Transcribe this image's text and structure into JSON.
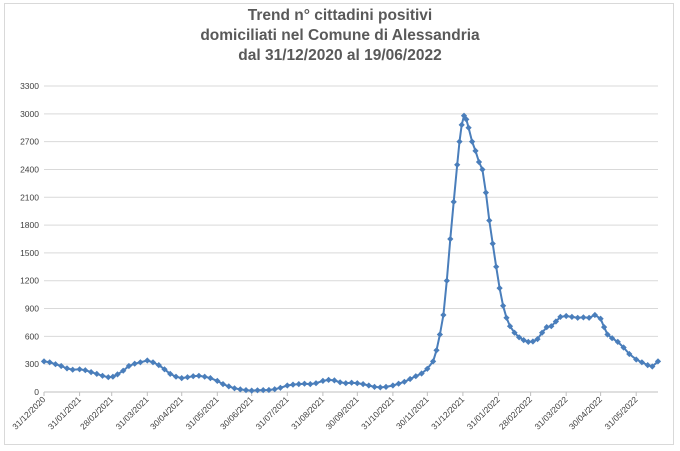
{
  "chart_data": {
    "type": "line",
    "title_lines": [
      "Trend n° cittadini positivi",
      "domiciliati nel Comune di Alessandria",
      "dal 31/12/2020 al 19/06/2022"
    ],
    "xlabel": "",
    "ylabel": "",
    "x_range": [
      "31/12/2020",
      "19/06/2022"
    ],
    "ylim": [
      0,
      3300
    ],
    "yticks": [
      0,
      300,
      600,
      900,
      1200,
      1500,
      1800,
      2100,
      2400,
      2700,
      3000,
      3300
    ],
    "xticks": [
      "31/12/2020",
      "31/01/2021",
      "28/02/2021",
      "31/03/2021",
      "30/04/2021",
      "31/05/2021",
      "30/06/2021",
      "31/07/2021",
      "31/08/2021",
      "30/09/2021",
      "31/10/2021",
      "30/11/2021",
      "31/12/2021",
      "31/01/2022",
      "28/02/2022",
      "31/03/2022",
      "30/04/2022",
      "31/05/2022"
    ],
    "grid": true,
    "legend": "none",
    "line_color": "#4a7ebb",
    "series": [
      {
        "points": [
          [
            "31/12/2020",
            330
          ],
          [
            "05/01/2021",
            320
          ],
          [
            "10/01/2021",
            300
          ],
          [
            "15/01/2021",
            280
          ],
          [
            "20/01/2021",
            255
          ],
          [
            "25/01/2021",
            240
          ],
          [
            "31/01/2021",
            245
          ],
          [
            "05/02/2021",
            235
          ],
          [
            "10/02/2021",
            215
          ],
          [
            "15/02/2021",
            195
          ],
          [
            "20/02/2021",
            175
          ],
          [
            "25/02/2021",
            160
          ],
          [
            "01/03/2021",
            165
          ],
          [
            "05/03/2021",
            190
          ],
          [
            "10/03/2021",
            230
          ],
          [
            "15/03/2021",
            280
          ],
          [
            "20/03/2021",
            305
          ],
          [
            "25/03/2021",
            320
          ],
          [
            "31/03/2021",
            340
          ],
          [
            "05/04/2021",
            320
          ],
          [
            "10/04/2021",
            290
          ],
          [
            "15/04/2021",
            245
          ],
          [
            "20/04/2021",
            195
          ],
          [
            "25/04/2021",
            165
          ],
          [
            "30/04/2021",
            150
          ],
          [
            "05/05/2021",
            160
          ],
          [
            "10/05/2021",
            170
          ],
          [
            "15/05/2021",
            175
          ],
          [
            "20/05/2021",
            165
          ],
          [
            "25/05/2021",
            150
          ],
          [
            "31/05/2021",
            120
          ],
          [
            "05/06/2021",
            85
          ],
          [
            "10/06/2021",
            60
          ],
          [
            "15/06/2021",
            40
          ],
          [
            "20/06/2021",
            28
          ],
          [
            "25/06/2021",
            20
          ],
          [
            "30/06/2021",
            15
          ],
          [
            "05/07/2021",
            18
          ],
          [
            "10/07/2021",
            20
          ],
          [
            "15/07/2021",
            22
          ],
          [
            "20/07/2021",
            30
          ],
          [
            "25/07/2021",
            45
          ],
          [
            "31/07/2021",
            70
          ],
          [
            "05/08/2021",
            80
          ],
          [
            "10/08/2021",
            85
          ],
          [
            "15/08/2021",
            90
          ],
          [
            "20/08/2021",
            85
          ],
          [
            "25/08/2021",
            95
          ],
          [
            "31/08/2021",
            120
          ],
          [
            "05/09/2021",
            130
          ],
          [
            "10/09/2021",
            125
          ],
          [
            "15/09/2021",
            105
          ],
          [
            "20/09/2021",
            95
          ],
          [
            "25/09/2021",
            100
          ],
          [
            "30/09/2021",
            95
          ],
          [
            "05/10/2021",
            85
          ],
          [
            "10/10/2021",
            70
          ],
          [
            "15/10/2021",
            55
          ],
          [
            "20/10/2021",
            50
          ],
          [
            "25/10/2021",
            55
          ],
          [
            "31/10/2021",
            70
          ],
          [
            "05/11/2021",
            90
          ],
          [
            "10/11/2021",
            110
          ],
          [
            "15/11/2021",
            140
          ],
          [
            "20/11/2021",
            170
          ],
          [
            "25/11/2021",
            200
          ],
          [
            "30/11/2021",
            250
          ],
          [
            "05/12/2021",
            330
          ],
          [
            "08/12/2021",
            450
          ],
          [
            "11/12/2021",
            620
          ],
          [
            "14/12/2021",
            830
          ],
          [
            "17/12/2021",
            1200
          ],
          [
            "20/12/2021",
            1650
          ],
          [
            "23/12/2021",
            2050
          ],
          [
            "26/12/2021",
            2450
          ],
          [
            "28/12/2021",
            2700
          ],
          [
            "30/12/2021",
            2880
          ],
          [
            "01/01/2022",
            2980
          ],
          [
            "03/01/2022",
            2940
          ],
          [
            "05/01/2022",
            2850
          ],
          [
            "08/01/2022",
            2700
          ],
          [
            "11/01/2022",
            2600
          ],
          [
            "14/01/2022",
            2480
          ],
          [
            "17/01/2022",
            2400
          ],
          [
            "20/01/2022",
            2150
          ],
          [
            "23/01/2022",
            1850
          ],
          [
            "26/01/2022",
            1600
          ],
          [
            "29/01/2022",
            1350
          ],
          [
            "01/02/2022",
            1120
          ],
          [
            "04/02/2022",
            930
          ],
          [
            "07/02/2022",
            800
          ],
          [
            "10/02/2022",
            710
          ],
          [
            "14/02/2022",
            640
          ],
          [
            "18/02/2022",
            590
          ],
          [
            "22/02/2022",
            560
          ],
          [
            "26/02/2022",
            540
          ],
          [
            "02/03/2022",
            545
          ],
          [
            "06/03/2022",
            570
          ],
          [
            "10/03/2022",
            640
          ],
          [
            "14/03/2022",
            700
          ],
          [
            "18/03/2022",
            710
          ],
          [
            "22/03/2022",
            760
          ],
          [
            "26/03/2022",
            810
          ],
          [
            "31/03/2022",
            820
          ],
          [
            "05/04/2022",
            810
          ],
          [
            "10/04/2022",
            800
          ],
          [
            "15/04/2022",
            805
          ],
          [
            "20/04/2022",
            800
          ],
          [
            "25/04/2022",
            830
          ],
          [
            "30/04/2022",
            790
          ],
          [
            "03/05/2022",
            700
          ],
          [
            "06/05/2022",
            620
          ],
          [
            "10/05/2022",
            580
          ],
          [
            "15/05/2022",
            540
          ],
          [
            "20/05/2022",
            480
          ],
          [
            "25/05/2022",
            410
          ],
          [
            "31/05/2022",
            350
          ],
          [
            "05/06/2022",
            320
          ],
          [
            "10/06/2022",
            290
          ],
          [
            "14/06/2022",
            275
          ],
          [
            "19/06/2022",
            330
          ]
        ]
      }
    ]
  }
}
